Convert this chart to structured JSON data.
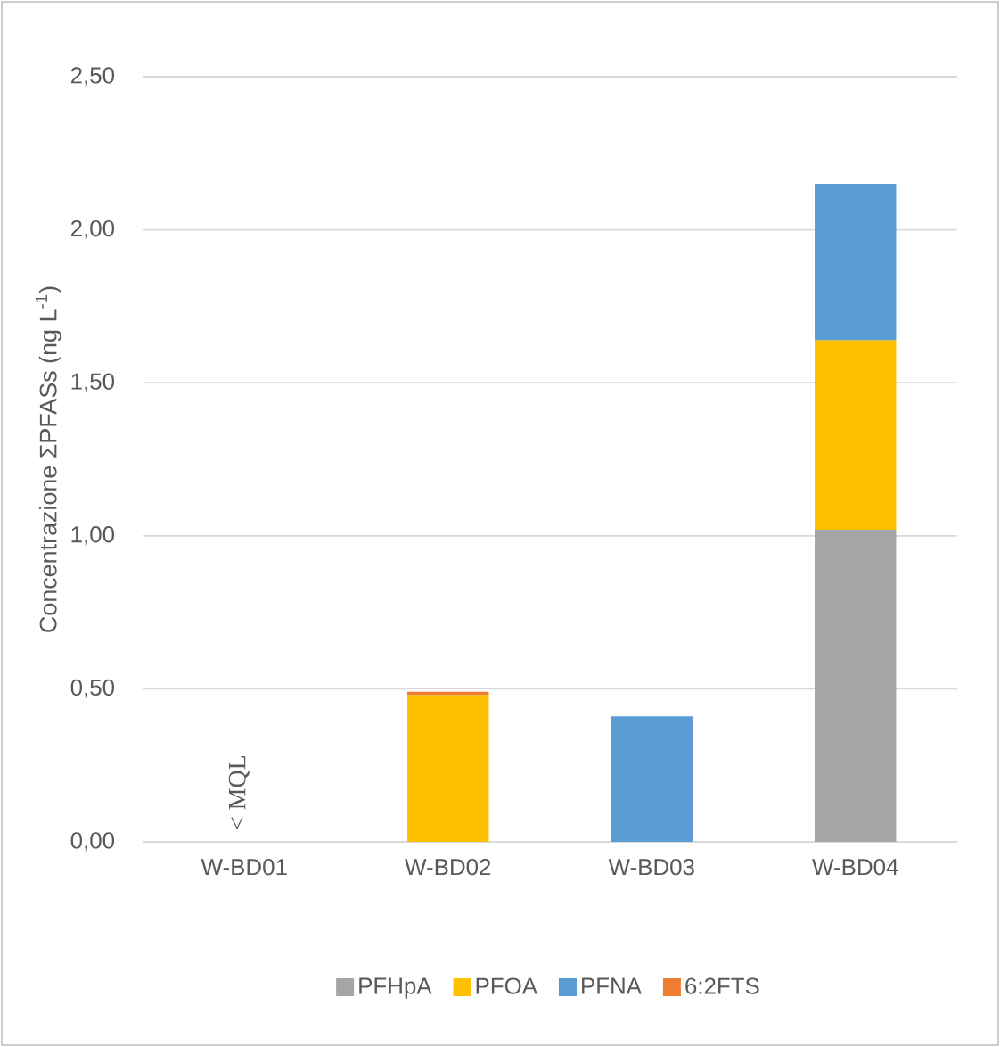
{
  "chart_data": {
    "type": "bar",
    "stacked": true,
    "ylabel": "Concentrazione ΣPFASs (ng L$^{-1}$)",
    "categories": [
      "W-BD01",
      "W-BD02",
      "W-BD03",
      "W-BD04"
    ],
    "series": [
      {
        "name": "PFHpA",
        "color": "#a5a5a5",
        "values": [
          null,
          null,
          null,
          1.02
        ]
      },
      {
        "name": "PFOA",
        "color": "#ffc000",
        "values": [
          null,
          0.48,
          null,
          0.62
        ]
      },
      {
        "name": "PFNA",
        "color": "#5b9bd5",
        "values": [
          null,
          null,
          0.41,
          0.51
        ]
      },
      {
        "name": "6:2FTS",
        "color": "#ed7d31",
        "values": [
          null,
          0.01,
          null,
          null
        ]
      }
    ],
    "ylim": [
      0,
      2.5
    ],
    "yticks": [
      {
        "value": 0,
        "label": "0,00"
      },
      {
        "value": 0.5,
        "label": "0,50"
      },
      {
        "value": 1,
        "label": "1,00"
      },
      {
        "value": 1.5,
        "label": "1,50"
      },
      {
        "value": 2,
        "label": "2,00"
      },
      {
        "value": 2.5,
        "label": "2,50"
      }
    ],
    "grid": "y",
    "legend": "bottom",
    "annotations": [
      "< MQL"
    ]
  }
}
